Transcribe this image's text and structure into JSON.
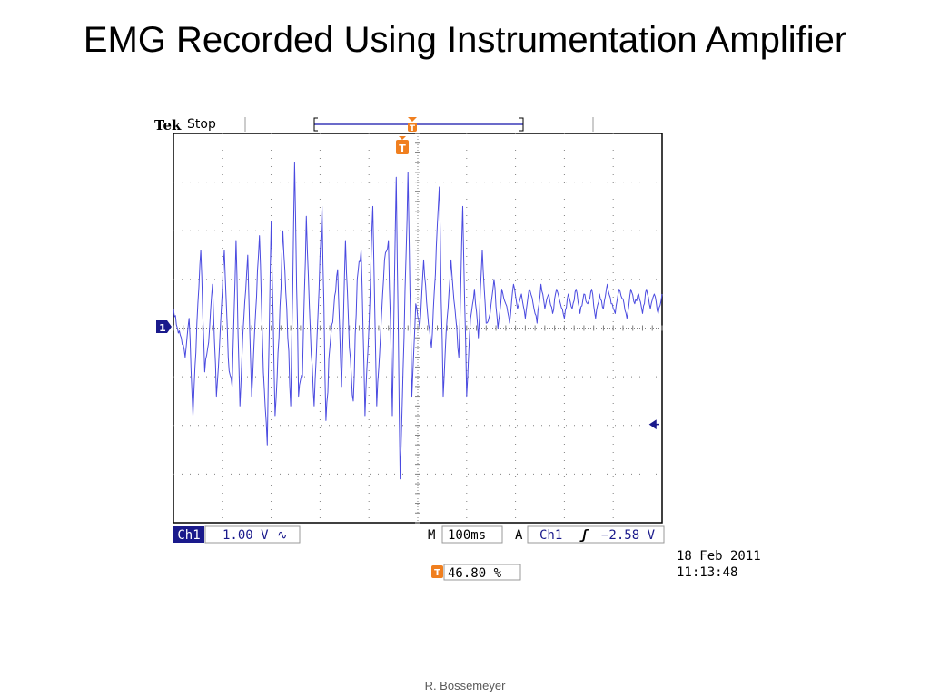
{
  "slide": {
    "title": "EMG Recorded Using Instrumentation Amplifier",
    "footer": "R. Bossemeyer"
  },
  "scope": {
    "brand": "Tek",
    "run_state": "Stop",
    "trigger_marker": "T",
    "channel_marker": "1",
    "channel": "Ch1",
    "volts_per_div": "1.00 V",
    "coupling_symbol": "∿",
    "timebase_label": "M",
    "time_per_div": "100ms",
    "trigger_mode": "A",
    "trigger_source": "Ch1",
    "trigger_slope": "ʃ",
    "trigger_level": "−2.58 V",
    "trigger_position": "46.80 %",
    "date": "18 Feb  2011",
    "time": "11:13:48",
    "colors": {
      "trace": "#4a4ae0",
      "trigger": "#f07f1f",
      "marker": "#1a1a8c",
      "frame": "#000000",
      "grid": "#808080"
    }
  },
  "chart_data": {
    "type": "line",
    "title": "",
    "xlabel": "",
    "ylabel": "",
    "x_unit": "ms",
    "y_unit": "V",
    "xlim": [
      -468,
      532
    ],
    "ylim": [
      -4.6,
      3.4
    ],
    "grid": true,
    "divisions": {
      "x": 10,
      "y": 8
    },
    "volts_per_div": 1.0,
    "ms_per_div": 100,
    "baseline_offset_v": -0.3,
    "trigger_level_v": -2.58,
    "series": [
      {
        "name": "",
        "color": "#4a4ae0",
        "x": [
          -468,
          -460,
          -452,
          -444,
          -436,
          -428,
          -420,
          -412,
          -404,
          -396,
          -388,
          -380,
          -372,
          -364,
          -356,
          -348,
          -340,
          -332,
          -324,
          -316,
          -308,
          -300,
          -292,
          -284,
          -276,
          -268,
          -260,
          -252,
          -244,
          -236,
          -228,
          -220,
          -212,
          -204,
          -196,
          -188,
          -180,
          -172,
          -164,
          -156,
          -148,
          -140,
          -132,
          -124,
          -116,
          -108,
          -100,
          -92,
          -84,
          -76,
          -68,
          -60,
          -52,
          -44,
          -36,
          -28,
          -20,
          -12,
          -4,
          4,
          12,
          20,
          28,
          36,
          44,
          52,
          60,
          68,
          76,
          84,
          92,
          100,
          108,
          116,
          124,
          132,
          140,
          148,
          156,
          164,
          172,
          180,
          188,
          196,
          204,
          212,
          220,
          228,
          236,
          244,
          252,
          260,
          268,
          276,
          284,
          292,
          300,
          308,
          316,
          324,
          332,
          340,
          348,
          356,
          364,
          372,
          380,
          388,
          396,
          404,
          412,
          420,
          428,
          436,
          444,
          452,
          460,
          468,
          476,
          484,
          492,
          500,
          508,
          516,
          524,
          532
        ],
        "values": [
          -0.2,
          -0.6,
          -0.8,
          -1.2,
          -0.4,
          -2.4,
          -0.5,
          1.0,
          -1.5,
          -0.9,
          0.3,
          -2.0,
          -0.6,
          1.0,
          -1.2,
          -1.8,
          1.2,
          -2.2,
          -0.4,
          0.9,
          -2.0,
          -0.3,
          1.3,
          -1.5,
          -3.0,
          1.6,
          -2.4,
          -0.8,
          1.4,
          -0.2,
          -2.2,
          2.8,
          -2.0,
          -1.6,
          1.7,
          -0.6,
          -2.2,
          -0.3,
          1.9,
          -2.5,
          -1.0,
          -0.2,
          0.6,
          -1.8,
          1.2,
          -1.0,
          -2.1,
          0.4,
          1.0,
          -2.4,
          -0.6,
          1.9,
          -2.2,
          -0.7,
          0.8,
          1.2,
          -2.4,
          2.5,
          -3.7,
          -0.8,
          2.6,
          -2.0,
          -0.1,
          -0.6,
          0.8,
          -0.3,
          -1.0,
          0.5,
          2.3,
          -2.0,
          -0.4,
          0.8,
          -0.2,
          -1.2,
          1.9,
          -2.0,
          -0.4,
          0.2,
          -0.8,
          1.0,
          -0.5,
          -0.3,
          0.4,
          -0.6,
          0.2,
          -0.1,
          -0.5,
          0.3,
          -0.2,
          0.1,
          -0.4,
          0.2,
          -0.1,
          -0.5,
          0.3,
          -0.2,
          0.1,
          -0.3,
          0.2,
          -0.1,
          -0.4,
          0.1,
          -0.2,
          0.2,
          -0.3,
          0.1,
          -0.1,
          0.2,
          -0.4,
          0.1,
          -0.2,
          0.3,
          -0.1,
          -0.3,
          0.2,
          0.0,
          -0.4,
          0.2,
          -0.1,
          0.1,
          -0.3,
          0.2,
          -0.2,
          0.1,
          -0.3,
          0.1
        ]
      }
    ]
  }
}
